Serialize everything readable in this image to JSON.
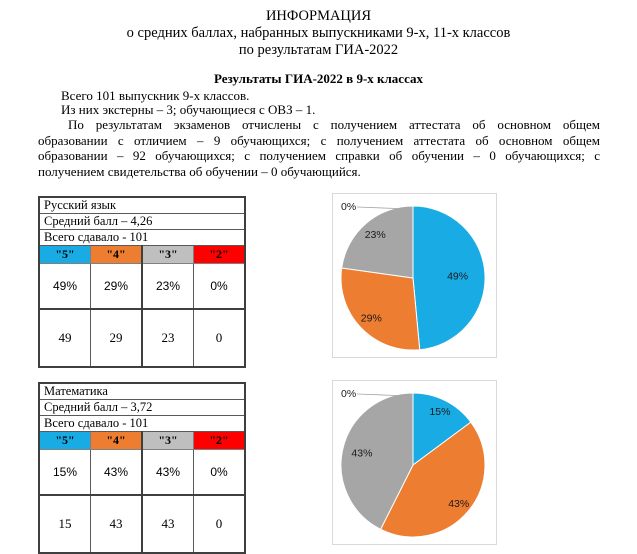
{
  "title": {
    "line1": "ИНФОРМАЦИЯ",
    "line2": "о средних баллах, набранных выпускниками 9-х, 11-х классов",
    "line3": "по результатам ГИА-2022"
  },
  "section_heading": "Результаты ГИА-2022 в 9-х классах",
  "intro": {
    "line1": "Всего 101 выпускник 9-х классов.",
    "line2": "Из них экстерны – 3; обучающиеся  с ОВЗ – 1.",
    "paragraph_lines": [
      "По результатам экзаменов отчислены с получением  аттестата об основном общем",
      "образовании с отличием – 9 обучающихся; с получением аттестата об основном общем",
      "образовании – 92 обучающихся; с получением справки об обучении – 0 обучающихся; с",
      "получением свидетельства об обучении – 0 обучающийся."
    ]
  },
  "grade_colors": [
    "#19ACE4",
    "#ED7D31",
    "#BFBFBF",
    "#FF0000"
  ],
  "tables": [
    {
      "subject": "Русский язык",
      "avg_label": "Средний балл – 4,26",
      "total_label": "Всего сдавало - 101",
      "grade_headers": [
        "\"5\"",
        "\"4\"",
        "\"3\"",
        "\"2\""
      ],
      "percents": [
        "49%",
        "29%",
        "23%",
        "0%"
      ],
      "counts": [
        "49",
        "29",
        "23",
        "0"
      ]
    },
    {
      "subject": "Математика",
      "avg_label": "Средний балл – 3,72",
      "total_label": "Всего сдавало - 101",
      "grade_headers": [
        "\"5\"",
        "\"4\"",
        "\"3\"",
        "\"2\""
      ],
      "percents": [
        "15%",
        "43%",
        "43%",
        "0%"
      ],
      "counts": [
        "15",
        "43",
        "43",
        "0"
      ]
    }
  ],
  "chart_data": [
    {
      "type": "pie",
      "subject": "Русский язык",
      "categories": [
        "\"5\"",
        "\"4\"",
        "\"3\"",
        "\"2\""
      ],
      "values": [
        49,
        29,
        23,
        0
      ],
      "percent_labels": [
        "49%",
        "29%",
        "23%",
        "0%"
      ],
      "colors": [
        "#19ACE4",
        "#ED7D31",
        "#A6A6A6",
        "#FF0000"
      ],
      "label_radius": [
        0.62,
        0.8,
        0.8,
        0
      ],
      "start_angle_deg": 0,
      "direction": "clockwise",
      "legend": "none"
    },
    {
      "type": "pie",
      "subject": "Математика",
      "categories": [
        "\"5\"",
        "\"4\"",
        "\"3\"",
        "\"2\""
      ],
      "values": [
        15,
        43,
        43,
        0
      ],
      "percent_labels": [
        "15%",
        "43%",
        "43%",
        "0%"
      ],
      "colors": [
        "#19ACE4",
        "#ED7D31",
        "#A6A6A6",
        "#FF0000"
      ],
      "label_radius": [
        0.83,
        0.83,
        0.73,
        0
      ],
      "start_angle_deg": 0,
      "direction": "clockwise",
      "legend": "none"
    }
  ]
}
